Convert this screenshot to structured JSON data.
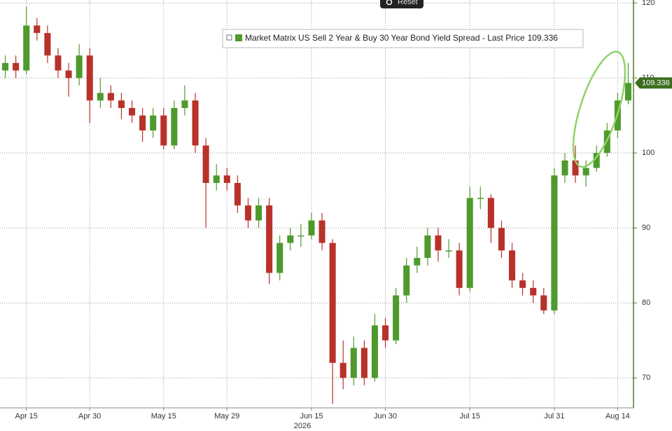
{
  "chart_data": {
    "type": "candlestick",
    "legend_name": "Market Matrix US Sell 2 Year & Buy 30 Year Bond Yield Spread - Last Price",
    "reset_button": "Reset",
    "year_label": "2026",
    "up_color": "#4f9a2c",
    "down_color": "#b8322a",
    "axis_color": "#4d7a2a",
    "categories": [
      null,
      null,
      "Apr 15",
      null,
      null,
      null,
      null,
      null,
      "Apr 30",
      null,
      null,
      null,
      null,
      null,
      null,
      "May 15",
      null,
      null,
      null,
      null,
      null,
      "May 29",
      null,
      null,
      null,
      null,
      null,
      null,
      null,
      "Jun 15",
      null,
      null,
      null,
      null,
      null,
      null,
      "Jun 30",
      null,
      null,
      null,
      null,
      null,
      null,
      null,
      "Jul 15",
      null,
      null,
      null,
      null,
      null,
      null,
      null,
      "Jul 31",
      null,
      null,
      null,
      null,
      null,
      "Aug 14",
      null
    ],
    "open": [
      111,
      112,
      111,
      117,
      116,
      113,
      111,
      110,
      113,
      107,
      108,
      107,
      106,
      105,
      103,
      105,
      101,
      106,
      107,
      101,
      96,
      97,
      96,
      93,
      91,
      93,
      84,
      88,
      89,
      89,
      91,
      88,
      72,
      70,
      74,
      70,
      77,
      75,
      81,
      85,
      86,
      89,
      87,
      87,
      82,
      94,
      94,
      90,
      87,
      83,
      82,
      81,
      79,
      97,
      99,
      97,
      98,
      100,
      103,
      107
    ],
    "high": [
      113,
      113,
      119.5,
      118,
      117,
      114,
      112,
      114.5,
      114,
      110,
      109,
      108,
      107,
      106,
      106,
      106,
      107,
      109,
      108,
      102,
      98.5,
      98,
      97,
      94,
      94,
      94,
      89,
      90,
      90.5,
      92,
      92,
      88.5,
      75,
      75.5,
      75,
      78.5,
      78,
      82,
      86,
      87.5,
      90,
      90,
      88.5,
      88,
      95.5,
      95.5,
      94.5,
      91,
      88,
      84,
      83,
      82,
      98,
      100,
      101,
      99,
      101,
      104,
      108,
      112
    ],
    "low": [
      110,
      110,
      110.5,
      115,
      112,
      110,
      107.5,
      109,
      104,
      106,
      106,
      104.5,
      104,
      101.5,
      102,
      100.5,
      100.5,
      105,
      100,
      90,
      95,
      95,
      92,
      90,
      90,
      82.5,
      83,
      87,
      87.5,
      88.5,
      87,
      66.5,
      68.5,
      69,
      69,
      69.5,
      74,
      74.5,
      80,
      84,
      85,
      85.5,
      86,
      81,
      81.5,
      92.5,
      88,
      86,
      82,
      81,
      80,
      78.5,
      78.5,
      96,
      96,
      95.5,
      97.5,
      99.5,
      102,
      106.5
    ],
    "close": [
      112,
      111,
      117,
      116,
      113,
      111,
      110,
      113,
      107,
      108,
      107,
      106,
      105,
      103,
      105,
      101,
      106,
      107,
      101,
      96,
      97,
      96,
      93,
      91,
      93,
      84,
      88,
      89,
      89,
      91,
      88,
      72,
      70,
      74,
      70,
      77,
      75,
      81,
      85,
      86,
      89,
      87,
      87,
      82,
      94,
      94,
      90,
      87,
      83,
      82,
      81,
      79,
      97,
      99,
      97,
      98,
      100,
      103,
      107,
      109.336
    ],
    "ylim": [
      66,
      120.4
    ],
    "yticks": [
      70,
      80,
      90,
      100,
      110,
      120
    ],
    "grid": true
  }
}
